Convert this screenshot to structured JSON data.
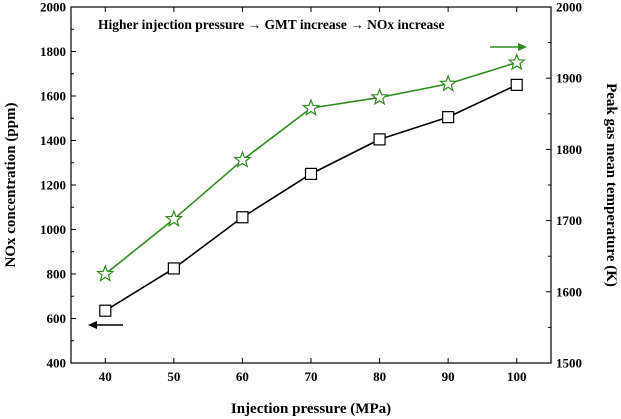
{
  "chart_data": {
    "type": "line",
    "title": "",
    "annotation": "Higher injection pressure → GMT increase  → NOx increase",
    "xlabel": "Injection pressure (MPa)",
    "ylabel_left": "NOx concentration (ppm)",
    "ylabel_right": "Peak gas mean temperature (K)",
    "x": [
      40,
      50,
      60,
      70,
      80,
      90,
      100
    ],
    "x_ticks": [
      40,
      50,
      60,
      70,
      80,
      90,
      100
    ],
    "xlim": [
      35,
      105
    ],
    "ylim_left": [
      400,
      2000
    ],
    "ylim_right": [
      1500,
      2000
    ],
    "y_ticks_left": [
      400,
      600,
      800,
      1000,
      1200,
      1400,
      1600,
      1800,
      2000
    ],
    "y_ticks_right": [
      1500,
      1600,
      1700,
      1800,
      1900,
      2000
    ],
    "series": [
      {
        "axis": "left",
        "marker": "square",
        "color": "#000000",
        "values": [
          635,
          825,
          1055,
          1250,
          1405,
          1505,
          1650
        ]
      },
      {
        "axis": "right",
        "marker": "star",
        "color": "#2e8b1e",
        "values": [
          1625,
          1702,
          1785,
          1858,
          1873,
          1892,
          1922
        ]
      }
    ],
    "grid": false
  }
}
